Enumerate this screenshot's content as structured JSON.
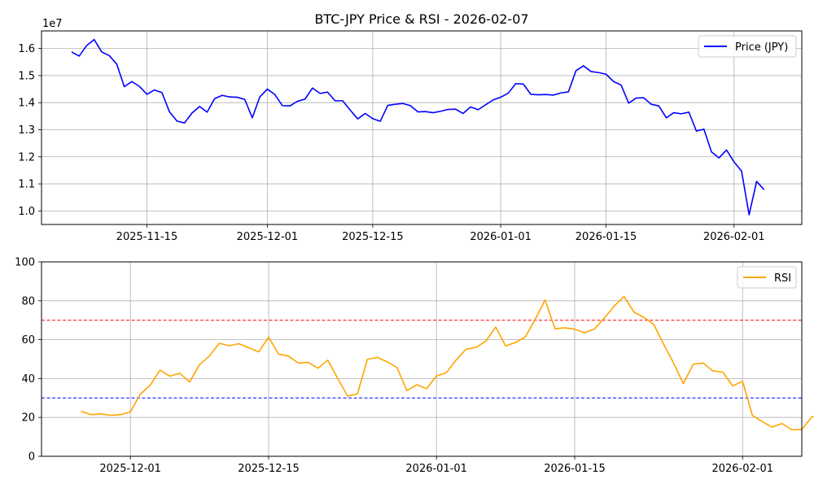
{
  "title": "BTC-JPY Price & RSI - 2026-02-07",
  "colors": {
    "price": "#0000ff",
    "rsi": "#ffa500",
    "overbought": "#ff0000",
    "oversold": "#0000ff",
    "grid": "#b0b0b0"
  },
  "chart_data": [
    {
      "type": "line",
      "title": "BTC-JPY Price & RSI - 2026-02-07",
      "x_range": [
        "2025-11-01",
        "2026-02-10"
      ],
      "ylim": [
        9500000,
        16650000
      ],
      "offset_label": "1e7",
      "grid": true,
      "legend_position": "top-right",
      "x_ticks": [
        {
          "date": "2025-11-15",
          "label": "2025-11-15"
        },
        {
          "date": "2025-12-01",
          "label": "2025-12-01"
        },
        {
          "date": "2025-12-15",
          "label": "2025-12-15"
        },
        {
          "date": "2026-01-01",
          "label": "2026-01-01"
        },
        {
          "date": "2026-01-15",
          "label": "2026-01-15"
        },
        {
          "date": "2026-02-01",
          "label": "2026-02-01"
        }
      ],
      "y_ticks": [
        {
          "value": 10000000,
          "label": "1.0"
        },
        {
          "value": 11000000,
          "label": "1.1"
        },
        {
          "value": 12000000,
          "label": "1.2"
        },
        {
          "value": 13000000,
          "label": "1.3"
        },
        {
          "value": 14000000,
          "label": "1.4"
        },
        {
          "value": 15000000,
          "label": "1.5"
        },
        {
          "value": 16000000,
          "label": "1.6"
        }
      ],
      "series": [
        {
          "name": "Price (JPY)",
          "start_date": "2025-11-05",
          "values": [
            15870000,
            15720000,
            16110000,
            16330000,
            15870000,
            15740000,
            15420000,
            14590000,
            14780000,
            14600000,
            14310000,
            14470000,
            14370000,
            13660000,
            13320000,
            13250000,
            13620000,
            13860000,
            13650000,
            14150000,
            14270000,
            14210000,
            14200000,
            14120000,
            13440000,
            14210000,
            14500000,
            14300000,
            13890000,
            13880000,
            14050000,
            14130000,
            14540000,
            14340000,
            14390000,
            14070000,
            14070000,
            13730000,
            13400000,
            13600000,
            13410000,
            13310000,
            13900000,
            13940000,
            13970000,
            13890000,
            13660000,
            13670000,
            13630000,
            13680000,
            13750000,
            13760000,
            13600000,
            13840000,
            13740000,
            13920000,
            14100000,
            14200000,
            14350000,
            14700000,
            14690000,
            14310000,
            14290000,
            14300000,
            14280000,
            14360000,
            14400000,
            15180000,
            15360000,
            15150000,
            15110000,
            15050000,
            14780000,
            14650000,
            13980000,
            14170000,
            14180000,
            13940000,
            13880000,
            13440000,
            13630000,
            13590000,
            13650000,
            12950000,
            13020000,
            12180000,
            11960000,
            12250000,
            11810000,
            11470000,
            9860000,
            11090000,
            10780000
          ]
        }
      ]
    },
    {
      "type": "line",
      "x_range": [
        "2025-11-22",
        "2026-02-07"
      ],
      "ylim": [
        0,
        100
      ],
      "grid": true,
      "legend_position": "top-right",
      "x_ticks": [
        {
          "date": "2025-12-01",
          "label": "2025-12-01"
        },
        {
          "date": "2025-12-15",
          "label": "2025-12-15"
        },
        {
          "date": "2026-01-01",
          "label": "2026-01-01"
        },
        {
          "date": "2026-01-15",
          "label": "2026-01-15"
        },
        {
          "date": "2026-02-01",
          "label": "2026-02-01"
        }
      ],
      "y_ticks": [
        {
          "value": 0,
          "label": "0"
        },
        {
          "value": 20,
          "label": "20"
        },
        {
          "value": 40,
          "label": "40"
        },
        {
          "value": 60,
          "label": "60"
        },
        {
          "value": 80,
          "label": "80"
        },
        {
          "value": 100,
          "label": "100"
        }
      ],
      "reference_lines": [
        {
          "value": 70,
          "color": "#ff0000",
          "style": "dashed"
        },
        {
          "value": 30,
          "color": "#0000ff",
          "style": "dashed"
        }
      ],
      "series": [
        {
          "name": "RSI",
          "start_date": "2025-11-26",
          "values": [
            23.2,
            21.4,
            21.8,
            21.1,
            21.4,
            22.8,
            31.9,
            36.5,
            44.3,
            41.2,
            42.7,
            38.2,
            47.1,
            51.6,
            58.1,
            56.9,
            57.9,
            55.8,
            53.7,
            61.3,
            52.6,
            51.6,
            48.0,
            48.3,
            45.3,
            49.5,
            40.0,
            31.0,
            32.1,
            49.9,
            50.9,
            48.6,
            45.7,
            33.8,
            36.8,
            34.8,
            41.3,
            43.0,
            49.6,
            55.1,
            56.0,
            59.2,
            66.5,
            56.8,
            58.5,
            61.4,
            70.5,
            80.4,
            65.6,
            66.1,
            65.4,
            63.5,
            65.5,
            71.1,
            77.3,
            82.2,
            74.2,
            71.5,
            67.9,
            57.8,
            48.1,
            37.4,
            47.3,
            48.0,
            43.9,
            43.3,
            36.2,
            38.6,
            21.0,
            17.8,
            15.0,
            16.9,
            13.6,
            13.8,
            20.2,
            21.2,
            15.8,
            11.1,
            28.4,
            27.3
          ]
        }
      ]
    }
  ]
}
